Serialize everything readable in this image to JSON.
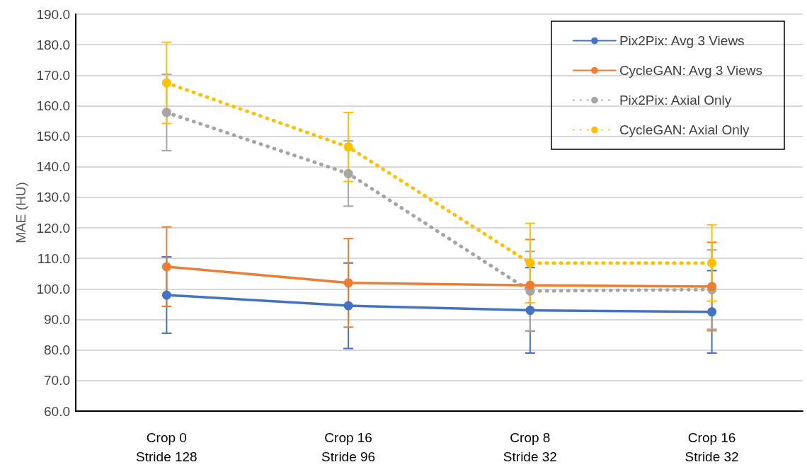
{
  "chart_data": {
    "type": "line",
    "ylabel": "MAE (HU)",
    "categories": [
      "Crop 0\nStride 128",
      "Crop 16\nStride 96",
      "Crop 8\nStride 32",
      "Crop 16\nStride 32"
    ],
    "series": [
      {
        "name": "Pix2Pix: Avg 3 Views",
        "color": "#4472c4",
        "line_style": "solid",
        "values": [
          98,
          94.5,
          93,
          92.5
        ],
        "errors": [
          12.5,
          14,
          14,
          13.5
        ]
      },
      {
        "name": "CycleGAN: Avg 3 Views",
        "color": "#ed7d31",
        "line_style": "solid",
        "values": [
          107.3,
          102,
          101.2,
          100.8
        ],
        "errors": [
          13,
          14.5,
          15,
          14.5
        ]
      },
      {
        "name": "Pix2Pix: Axial Only",
        "color": "#a5a5a5",
        "line_style": "dotted",
        "values": [
          157.8,
          137.8,
          99.3,
          99.8
        ],
        "errors": [
          12.5,
          10.7,
          13,
          13
        ]
      },
      {
        "name": "CycleGAN: Axial Only",
        "color": "#ffc000",
        "line_style": "dotted",
        "values": [
          167.5,
          146.5,
          108.5,
          108.5
        ],
        "errors": [
          13.3,
          11.3,
          13,
          12.5
        ]
      }
    ],
    "ylim": [
      60,
      190
    ],
    "yticks": [
      {
        "value": 60,
        "label": "60.0"
      },
      {
        "value": 70,
        "label": "70.0"
      },
      {
        "value": 80,
        "label": "80.0"
      },
      {
        "value": 90,
        "label": "90.0"
      },
      {
        "value": 100,
        "label": "100.0"
      },
      {
        "value": 110,
        "label": "110.0"
      },
      {
        "value": 120,
        "label": "120.0"
      },
      {
        "value": 130,
        "label": "130.0"
      },
      {
        "value": 140,
        "label": "140.0"
      },
      {
        "value": 150,
        "label": "150.0"
      },
      {
        "value": 160,
        "label": "160.0"
      },
      {
        "value": 170,
        "label": "170.0"
      },
      {
        "value": 180,
        "label": "180.0"
      },
      {
        "value": 190,
        "label": "190.0"
      }
    ],
    "grid": "y",
    "legend": "top right",
    "marker": "circle"
  }
}
